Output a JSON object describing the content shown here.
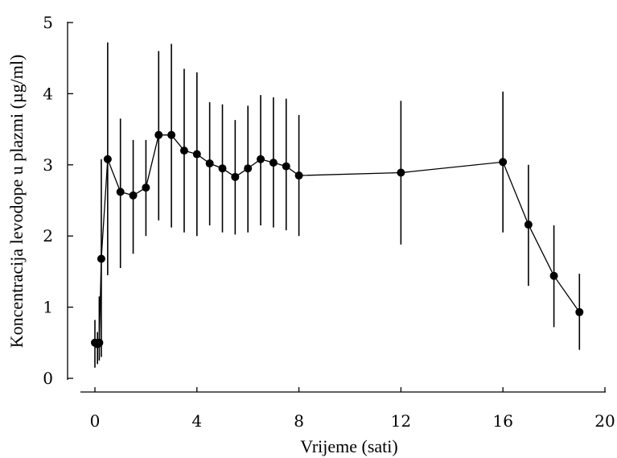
{
  "chart_data": {
    "type": "line",
    "title": "",
    "xlabel": "Vrijeme (sati)",
    "ylabel": "Koncentracija levodope u plazmi (µg/ml)",
    "xlim": [
      0,
      20
    ],
    "ylim": [
      0,
      5
    ],
    "x_ticks": [
      "0",
      "4",
      "8",
      "12",
      "16",
      "20"
    ],
    "y_ticks": [
      "0",
      "1",
      "2",
      "3",
      "4",
      "5"
    ],
    "grid": false,
    "legend": "none",
    "marker": "filled-circle",
    "error_bars": true,
    "color": "#000000",
    "series": [
      {
        "points": [
          {
            "x": 0,
            "y": 0.5,
            "err_low": 0.15,
            "err_high": 0.82
          },
          {
            "x": 0.1,
            "y": 0.48,
            "err_low": 0.2,
            "err_high": 0.65
          },
          {
            "x": 0.17,
            "y": 0.5,
            "err_low": 0.25,
            "err_high": 1.15
          },
          {
            "x": 0.25,
            "y": 1.68,
            "err_low": 0.3,
            "err_high": 3.08
          },
          {
            "x": 0.5,
            "y": 3.08,
            "err_low": 1.45,
            "err_high": 4.72
          },
          {
            "x": 1,
            "y": 2.62,
            "err_low": 1.55,
            "err_high": 3.65
          },
          {
            "x": 1.5,
            "y": 2.57,
            "err_low": 1.75,
            "err_high": 3.35
          },
          {
            "x": 2,
            "y": 2.68,
            "err_low": 2.0,
            "err_high": 3.35
          },
          {
            "x": 2.5,
            "y": 3.42,
            "err_low": 2.22,
            "err_high": 4.6
          },
          {
            "x": 3,
            "y": 3.42,
            "err_low": 2.12,
            "err_high": 4.7
          },
          {
            "x": 3.5,
            "y": 3.2,
            "err_low": 2.05,
            "err_high": 4.35
          },
          {
            "x": 4,
            "y": 3.15,
            "err_low": 2.0,
            "err_high": 4.3
          },
          {
            "x": 4.5,
            "y": 3.02,
            "err_low": 2.15,
            "err_high": 3.88
          },
          {
            "x": 5,
            "y": 2.95,
            "err_low": 2.05,
            "err_high": 3.85
          },
          {
            "x": 5.5,
            "y": 2.83,
            "err_low": 2.02,
            "err_high": 3.63
          },
          {
            "x": 6,
            "y": 2.95,
            "err_low": 2.05,
            "err_high": 3.83
          },
          {
            "x": 6.5,
            "y": 3.08,
            "err_low": 2.15,
            "err_high": 3.98
          },
          {
            "x": 7,
            "y": 3.03,
            "err_low": 2.12,
            "err_high": 3.95
          },
          {
            "x": 7.5,
            "y": 2.98,
            "err_low": 2.08,
            "err_high": 3.93
          },
          {
            "x": 8,
            "y": 2.85,
            "err_low": 2.0,
            "err_high": 3.7
          },
          {
            "x": 12,
            "y": 2.89,
            "err_low": 1.88,
            "err_high": 3.9
          },
          {
            "x": 16,
            "y": 3.04,
            "err_low": 2.05,
            "err_high": 4.03
          },
          {
            "x": 17,
            "y": 2.16,
            "err_low": 1.3,
            "err_high": 3.0
          },
          {
            "x": 18,
            "y": 1.44,
            "err_low": 0.72,
            "err_high": 2.15
          },
          {
            "x": 19,
            "y": 0.93,
            "err_low": 0.4,
            "err_high": 1.47
          }
        ]
      }
    ]
  }
}
